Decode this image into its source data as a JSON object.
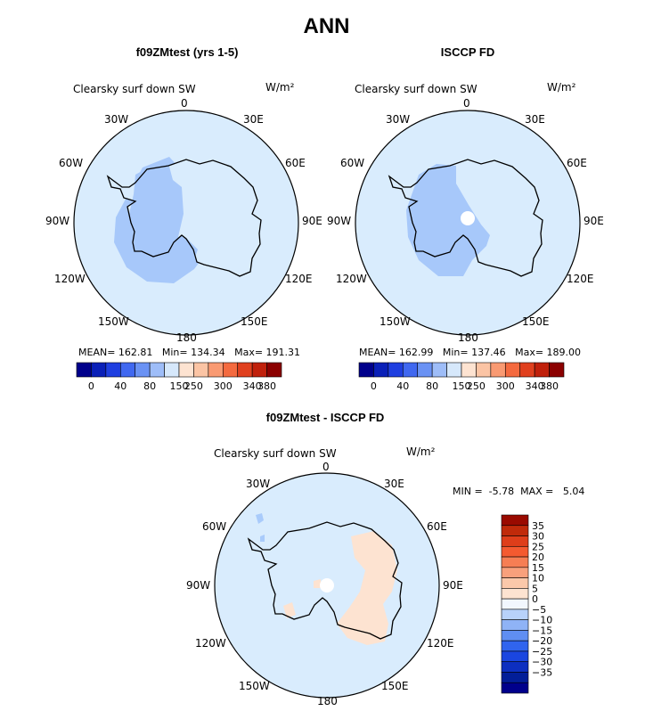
{
  "page": {
    "title": "ANN"
  },
  "colors": {
    "ocean_fill": "#d9ecfd",
    "ice_light": "#d9ecfd",
    "ice_medium": "#a7c8fa",
    "positive_diff": "#fde3d1",
    "negative_diff": "#a9cbfb",
    "missing": "#ffffff"
  },
  "panels": [
    {
      "heading": "f09ZMtest (yrs 1-5)",
      "field_label": "Clearsky surf down SW",
      "units_label": "W/m²",
      "stats": "MEAN= 162.81   Min= 134.34   Max= 191.31",
      "lon_labels": {
        "n": "0",
        "ne": "30E",
        "e1": "60E",
        "e2": "90E",
        "e3": "120E",
        "se": "150E",
        "s": "180",
        "sw": "150W",
        "w3": "120W",
        "w2": "90W",
        "w1": "60W",
        "nw": "30W"
      }
    },
    {
      "heading": "ISCCP FD",
      "field_label": "Clearsky surf down SW",
      "units_label": "W/m²",
      "stats": "MEAN= 162.99   Min= 137.46   Max= 189.00",
      "lon_labels": {
        "n": "0",
        "ne": "30E",
        "e1": "60E",
        "e2": "90E",
        "e3": "120E",
        "se": "150E",
        "s": "180",
        "sw": "150W",
        "w3": "120W",
        "w2": "90W",
        "w1": "60W",
        "nw": "30W"
      }
    },
    {
      "heading": "f09ZMtest - ISCCP FD",
      "field_label": "Clearsky surf down SW",
      "units_label": "W/m²",
      "stats": "MIN =  -5.78  MAX =   5.04",
      "lon_labels": {
        "n": "0",
        "ne": "30E",
        "e1": "60E",
        "e2": "90E",
        "e3": "120E",
        "se": "150E",
        "s": "180",
        "sw": "150W",
        "w3": "120W",
        "w2": "90W",
        "w1": "60W",
        "nw": "30W"
      }
    }
  ],
  "horizontal_colorbar": {
    "colors": [
      "#00008b",
      "#0a20b8",
      "#1f3fe0",
      "#4068f0",
      "#6a92f4",
      "#9ebdf8",
      "#d6e8fb",
      "#fde3d1",
      "#fbc4a4",
      "#f99a72",
      "#f46a3f",
      "#e0401e",
      "#c0200b",
      "#8b0000"
    ],
    "tick_labels": [
      "0",
      "40",
      "80",
      "150",
      "250",
      "300",
      "340",
      "380"
    ]
  },
  "vertical_colorbar": {
    "colors_top_to_bottom": [
      "#9a0a00",
      "#c02a0a",
      "#de3e1a",
      "#f45a30",
      "#f67e54",
      "#f8a07c",
      "#fbc8aa",
      "#fde3d1",
      "#f2f7fe",
      "#b8d2fa",
      "#8fb3f6",
      "#5f8ef2",
      "#3064ee",
      "#1a46e0",
      "#0d2fc0",
      "#021e98",
      "#00008b"
    ],
    "tick_labels": [
      "35",
      "30",
      "25",
      "20",
      "15",
      "10",
      "5",
      "0",
      "−5",
      "−10",
      "−15",
      "−20",
      "−25",
      "−30",
      "−35"
    ]
  }
}
